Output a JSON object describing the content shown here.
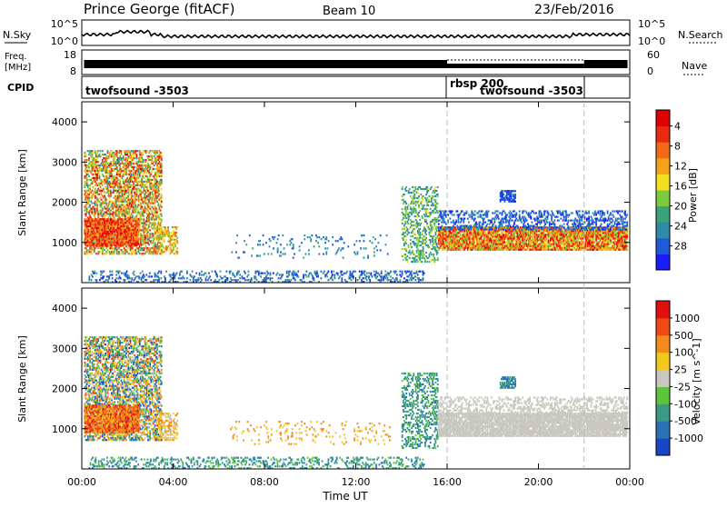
{
  "header": {
    "station": "Prince George (fitACF)",
    "beam": "Beam 10",
    "date": "23/Feb/2016"
  },
  "strips": {
    "nsky": {
      "label": "N.Sky",
      "tick_top": "10^5",
      "tick_bottom": "10^0",
      "right_top": "10^5",
      "right_bottom": "10^0",
      "right_label": "N.Search"
    },
    "freq": {
      "label_line1": "Freq.",
      "label_line2": "[MHz]",
      "tick_top": "18",
      "tick_bottom": "8",
      "right_top": "60",
      "right_bottom": "0",
      "right_label": "Nave"
    },
    "cpid": {
      "label": "CPID",
      "segments": [
        {
          "text": "twofsound -3503",
          "start_hour": 0
        },
        {
          "text": "rbsp 200",
          "start_hour": 16
        },
        {
          "text": "twofsound -3503",
          "start_hour": 16.1
        }
      ]
    }
  },
  "chart_data": [
    {
      "type": "heatmap",
      "panel": "power",
      "ylabel": "Slant Range [km]",
      "ylim": [
        0,
        4500
      ],
      "yticks": [
        "1000",
        "2000",
        "3000",
        "4000"
      ],
      "xlim_hours": [
        0,
        24
      ],
      "colorbar": {
        "label": "Power [dB]",
        "ticks": [
          "4",
          "8",
          "12",
          "16",
          "20",
          "24",
          "28"
        ],
        "range": [
          0,
          30
        ],
        "colors": [
          "#1a1aff",
          "#1e5bd6",
          "#2e8ba8",
          "#3aa37a",
          "#7ccb3c",
          "#f4df1e",
          "#f7a01a",
          "#f46a14",
          "#ea2a0f",
          "#e00000"
        ]
      }
    },
    {
      "type": "heatmap",
      "panel": "velocity",
      "ylabel": "Slant Range [km]",
      "ylim": [
        0,
        4500
      ],
      "yticks": [
        "1000",
        "2000",
        "3000",
        "4000"
      ],
      "xlim_hours": [
        0,
        24
      ],
      "colorbar": {
        "label": "Velocity [m s^-1]",
        "ticks": [
          "1000",
          "500",
          "100",
          "25",
          "-25",
          "-100",
          "-500",
          "-1000"
        ],
        "colors": [
          "#1846c8",
          "#2a72b8",
          "#3a9a86",
          "#5cc43a",
          "#c8c8c0",
          "#f2c81c",
          "#f48a1a",
          "#f04a14",
          "#e01010"
        ]
      }
    }
  ],
  "x_axis": {
    "label": "Time UT",
    "ticks": [
      "00:00",
      "04:00",
      "08:00",
      "12:00",
      "16:00",
      "20:00",
      "00:00"
    ],
    "tick_hours": [
      0,
      4,
      8,
      12,
      16,
      20,
      24
    ]
  },
  "markers": {
    "dashed_hours": [
      16,
      22
    ]
  },
  "colors": {
    "background": "#ffffff",
    "axis": "#000000",
    "marker": "#bbbbbb"
  }
}
